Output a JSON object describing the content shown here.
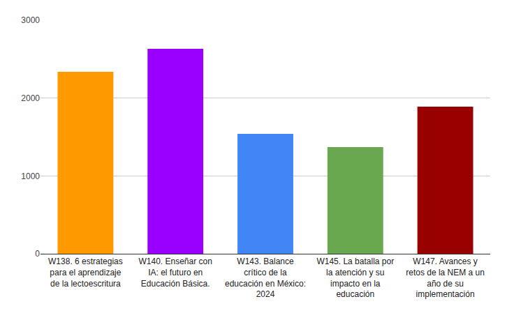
{
  "chart_data": {
    "type": "bar",
    "categories": [
      "W138. 6 estrategias para el aprendizaje de la lectoescritura",
      "W140. Enseñar con IA: el futuro en Educación Básica.",
      "W143. Balance crítico de la educación en México: 2024",
      "W145. La batalla por la atención y su impacto en la educación",
      "W147. Avances y retos de la NEM a un año de su implementación"
    ],
    "values": [
      2337,
      2633,
      1540,
      1370,
      1890
    ],
    "colors": [
      "#ff9900",
      "#9900ff",
      "#4285f4",
      "#6aa84f",
      "#990000"
    ],
    "ylim": [
      0,
      3000
    ],
    "yticks": [
      0,
      1000,
      2000,
      3000
    ],
    "grid": true
  }
}
